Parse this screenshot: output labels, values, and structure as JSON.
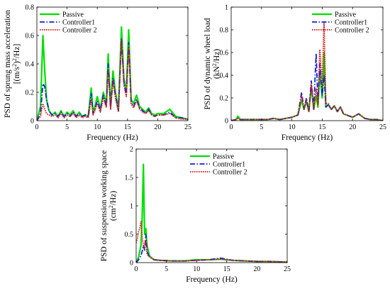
{
  "chart_data": [
    {
      "type": "line",
      "xlabel": "Frequency (Hz)",
      "ylabel_lines": [
        "PSD of sprung mass acceleration",
        "[(m/s",
        "2",
        ")",
        "2",
        "/Hz]"
      ],
      "xlim": [
        0,
        25
      ],
      "ylim": [
        0,
        0.8
      ],
      "xticks": [
        "0",
        "5",
        "10",
        "15",
        "20",
        "25"
      ],
      "yticks": [
        "0",
        "0.2",
        "0.4",
        "0.6",
        "0.8"
      ],
      "legend": [
        "Passive",
        "Controller1",
        "Controller 2"
      ],
      "series": [
        {
          "name": "Passive",
          "color": "#00e000",
          "style": "solid",
          "x": [
            0,
            0.6,
            1.0,
            1.3,
            1.6,
            2.0,
            2.5,
            3,
            3.5,
            4,
            4.5,
            5,
            5.5,
            6,
            6.5,
            7,
            7.5,
            8,
            8.5,
            9,
            9.3,
            9.6,
            10,
            10.5,
            11,
            11.5,
            11.8,
            12.2,
            12.6,
            13,
            13.5,
            14,
            14.4,
            14.8,
            15.2,
            15.6,
            16,
            16.5,
            17,
            17.5,
            18,
            18.5,
            19,
            19.5,
            20,
            21,
            22,
            23,
            24,
            25
          ],
          "y": [
            0,
            0.1,
            0.6,
            0.35,
            0.15,
            0.07,
            0.04,
            0.06,
            0.03,
            0.07,
            0.03,
            0.06,
            0.04,
            0.07,
            0.03,
            0.06,
            0.03,
            0.04,
            0.03,
            0.23,
            0.06,
            0.1,
            0.17,
            0.08,
            0.2,
            0.12,
            0.47,
            0.1,
            0.35,
            0.2,
            0.08,
            0.66,
            0.3,
            0.2,
            0.64,
            0.15,
            0.12,
            0.18,
            0.1,
            0.08,
            0.06,
            0.09,
            0.05,
            0.04,
            0.05,
            0.05,
            0.08,
            0.03,
            0.02,
            0.01
          ]
        },
        {
          "name": "Controller1",
          "color": "#1020e0",
          "style": "dashdot",
          "x": [
            0,
            0.6,
            1.0,
            1.3,
            1.6,
            2.0,
            2.5,
            3,
            3.5,
            4,
            4.5,
            5,
            5.5,
            6,
            6.5,
            7,
            7.5,
            8,
            8.5,
            9,
            9.3,
            9.6,
            10,
            10.5,
            11,
            11.5,
            11.8,
            12.2,
            12.6,
            13,
            13.5,
            14,
            14.4,
            14.8,
            15.2,
            15.6,
            16,
            16.5,
            17,
            17.5,
            18,
            18.5,
            19,
            19.5,
            20,
            21,
            22,
            23,
            24,
            25
          ],
          "y": [
            0,
            0.05,
            0.26,
            0.24,
            0.15,
            0.07,
            0.04,
            0.05,
            0.03,
            0.06,
            0.03,
            0.05,
            0.03,
            0.06,
            0.03,
            0.05,
            0.03,
            0.04,
            0.03,
            0.19,
            0.05,
            0.08,
            0.14,
            0.07,
            0.18,
            0.1,
            0.4,
            0.09,
            0.3,
            0.18,
            0.07,
            0.58,
            0.27,
            0.18,
            0.55,
            0.13,
            0.1,
            0.15,
            0.09,
            0.07,
            0.05,
            0.08,
            0.04,
            0.03,
            0.04,
            0.04,
            0.06,
            0.02,
            0.02,
            0.01
          ]
        },
        {
          "name": "Controller 2",
          "color": "#e01010",
          "style": "dotted",
          "x": [
            0,
            0.6,
            1.0,
            1.3,
            1.6,
            2.0,
            2.5,
            3,
            3.5,
            4,
            4.5,
            5,
            5.5,
            6,
            6.5,
            7,
            7.5,
            8,
            8.5,
            9,
            9.3,
            9.6,
            10,
            10.5,
            11,
            11.5,
            11.8,
            12.2,
            12.6,
            13,
            13.5,
            14,
            14.4,
            14.8,
            15.2,
            15.6,
            16,
            16.5,
            17,
            17.5,
            18,
            18.5,
            19,
            19.5,
            20,
            21,
            22,
            23,
            24,
            25
          ],
          "y": [
            0,
            0.03,
            0.12,
            0.08,
            0.05,
            0.04,
            0.03,
            0.04,
            0.02,
            0.05,
            0.02,
            0.04,
            0.03,
            0.05,
            0.02,
            0.04,
            0.02,
            0.03,
            0.02,
            0.15,
            0.04,
            0.07,
            0.12,
            0.06,
            0.16,
            0.09,
            0.36,
            0.08,
            0.28,
            0.16,
            0.06,
            0.56,
            0.25,
            0.17,
            0.52,
            0.12,
            0.09,
            0.14,
            0.08,
            0.06,
            0.05,
            0.07,
            0.04,
            0.03,
            0.04,
            0.04,
            0.05,
            0.02,
            0.01,
            0.01
          ]
        }
      ]
    },
    {
      "type": "line",
      "xlabel": "Frequency (Hz)",
      "ylabel_lines": [
        "PSD of dynamic wheel load",
        "(kN",
        "2",
        "/Hz)"
      ],
      "xlim": [
        0,
        25
      ],
      "ylim": [
        0,
        1
      ],
      "xticks": [
        "0",
        "5",
        "10",
        "15",
        "20",
        "25"
      ],
      "yticks": [
        "0",
        "0.2",
        "0.4",
        "0.6",
        "0.8",
        "1"
      ],
      "legend": [
        "Passive",
        "Controller1",
        "Controller 2"
      ],
      "series": [
        {
          "name": "Passive",
          "color": "#00e000",
          "style": "solid",
          "x": [
            0,
            0.8,
            1.1,
            1.5,
            3,
            5,
            6,
            7,
            8,
            9,
            10,
            11,
            11.6,
            12,
            12.4,
            12.8,
            13.2,
            13.6,
            14,
            14.3,
            14.6,
            15,
            15.3,
            15.6,
            16,
            16.5,
            17,
            17.5,
            18,
            18.5,
            19,
            20,
            21,
            22,
            23,
            24,
            25
          ],
          "y": [
            0,
            0.01,
            0.04,
            0.01,
            0.01,
            0.01,
            0.01,
            0.02,
            0.01,
            0.02,
            0.03,
            0.05,
            0.18,
            0.1,
            0.17,
            0.08,
            0.3,
            0.1,
            0.22,
            0.12,
            0.43,
            0.2,
            0.6,
            0.12,
            0.14,
            0.1,
            0.13,
            0.08,
            0.12,
            0.06,
            0.05,
            0.03,
            0.06,
            0.02,
            0.01,
            0.01,
            0
          ]
        },
        {
          "name": "Controller1",
          "color": "#1020e0",
          "style": "dashdot",
          "x": [
            0,
            0.8,
            1.1,
            1.5,
            3,
            5,
            6,
            7,
            8,
            9,
            10,
            11,
            11.6,
            12,
            12.4,
            12.8,
            13.2,
            13.6,
            14,
            14.3,
            14.6,
            15,
            15.3,
            15.6,
            16,
            16.5,
            17,
            17.5,
            18,
            18.5,
            19,
            20,
            21,
            22,
            23,
            24,
            25
          ],
          "y": [
            0,
            0.01,
            0.02,
            0.01,
            0.01,
            0.01,
            0.01,
            0.02,
            0.01,
            0.02,
            0.03,
            0.05,
            0.25,
            0.1,
            0.2,
            0.08,
            0.35,
            0.1,
            0.59,
            0.15,
            0.5,
            0.22,
            0.4,
            0.12,
            0.14,
            0.1,
            0.13,
            0.08,
            0.12,
            0.06,
            0.05,
            0.03,
            0.06,
            0.02,
            0.01,
            0.01,
            0
          ]
        },
        {
          "name": "Controller 2",
          "color": "#e01010",
          "style": "dotted",
          "x": [
            0,
            0.8,
            1.1,
            1.5,
            3,
            5,
            6,
            7,
            8,
            9,
            10,
            11,
            11.6,
            12,
            12.4,
            12.8,
            13.2,
            13.6,
            14,
            14.3,
            14.6,
            15,
            15.3,
            15.6,
            16,
            16.5,
            17,
            17.5,
            18,
            18.5,
            19,
            20,
            21,
            22,
            23,
            24,
            25
          ],
          "y": [
            0,
            0.01,
            0.02,
            0.01,
            0.01,
            0.01,
            0.01,
            0.02,
            0.01,
            0.02,
            0.03,
            0.05,
            0.22,
            0.1,
            0.18,
            0.08,
            0.32,
            0.1,
            0.28,
            0.14,
            0.62,
            0.3,
            0.86,
            0.15,
            0.15,
            0.1,
            0.13,
            0.08,
            0.12,
            0.06,
            0.05,
            0.03,
            0.06,
            0.02,
            0.01,
            0.01,
            0
          ]
        }
      ]
    },
    {
      "type": "line",
      "xlabel": "Frequency (Hz)",
      "ylabel_lines": [
        "PSD of suspension working space",
        "(cm",
        "2",
        "/Hz)"
      ],
      "xlim": [
        0,
        25
      ],
      "ylim": [
        0,
        2
      ],
      "xticks": [
        "0",
        "5",
        "10",
        "15",
        "20",
        "25"
      ],
      "yticks": [
        "0",
        "0.5",
        "1",
        "1.5",
        "2"
      ],
      "legend": [
        "Passive",
        "Controller1",
        "Controller 2"
      ],
      "series": [
        {
          "name": "Passive",
          "color": "#00e000",
          "style": "solid",
          "x": [
            0,
            0.4,
            0.8,
            1.0,
            1.2,
            1.4,
            1.6,
            1.8,
            2.2,
            2.6,
            3,
            4,
            6,
            8,
            10,
            12,
            14,
            16,
            18,
            20,
            22,
            25
          ],
          "y": [
            0,
            0.1,
            0.3,
            0.8,
            1.73,
            0.5,
            0.6,
            0.3,
            0.12,
            0.08,
            0.05,
            0.04,
            0.03,
            0.03,
            0.05,
            0.05,
            0.06,
            0.04,
            0.03,
            0.02,
            0.02,
            0.01
          ]
        },
        {
          "name": "Controller1",
          "color": "#1020e0",
          "style": "dashdot",
          "x": [
            0,
            0.4,
            0.8,
            1.0,
            1.2,
            1.4,
            1.6,
            1.8,
            2.2,
            2.6,
            3,
            4,
            6,
            8,
            10,
            12,
            14,
            16,
            18,
            20,
            22,
            25
          ],
          "y": [
            0,
            0.05,
            0.12,
            0.2,
            0.3,
            0.22,
            0.5,
            0.2,
            0.1,
            0.07,
            0.05,
            0.04,
            0.03,
            0.03,
            0.04,
            0.05,
            0.08,
            0.04,
            0.03,
            0.02,
            0.02,
            0.01
          ]
        },
        {
          "name": "Controller 2",
          "color": "#e01010",
          "style": "dotted",
          "x": [
            0,
            0.2,
            0.4,
            0.6,
            0.8,
            1.0,
            1.2,
            1.4,
            1.6,
            1.8,
            2.2,
            2.6,
            3,
            4,
            6,
            8,
            10,
            12,
            14,
            16,
            18,
            20,
            22,
            25
          ],
          "y": [
            0.35,
            0.42,
            0.55,
            0.6,
            0.72,
            0.45,
            0.3,
            0.25,
            0.4,
            0.15,
            0.1,
            0.07,
            0.05,
            0.04,
            0.03,
            0.03,
            0.04,
            0.05,
            0.06,
            0.04,
            0.03,
            0.02,
            0.02,
            0.01
          ]
        }
      ]
    }
  ]
}
